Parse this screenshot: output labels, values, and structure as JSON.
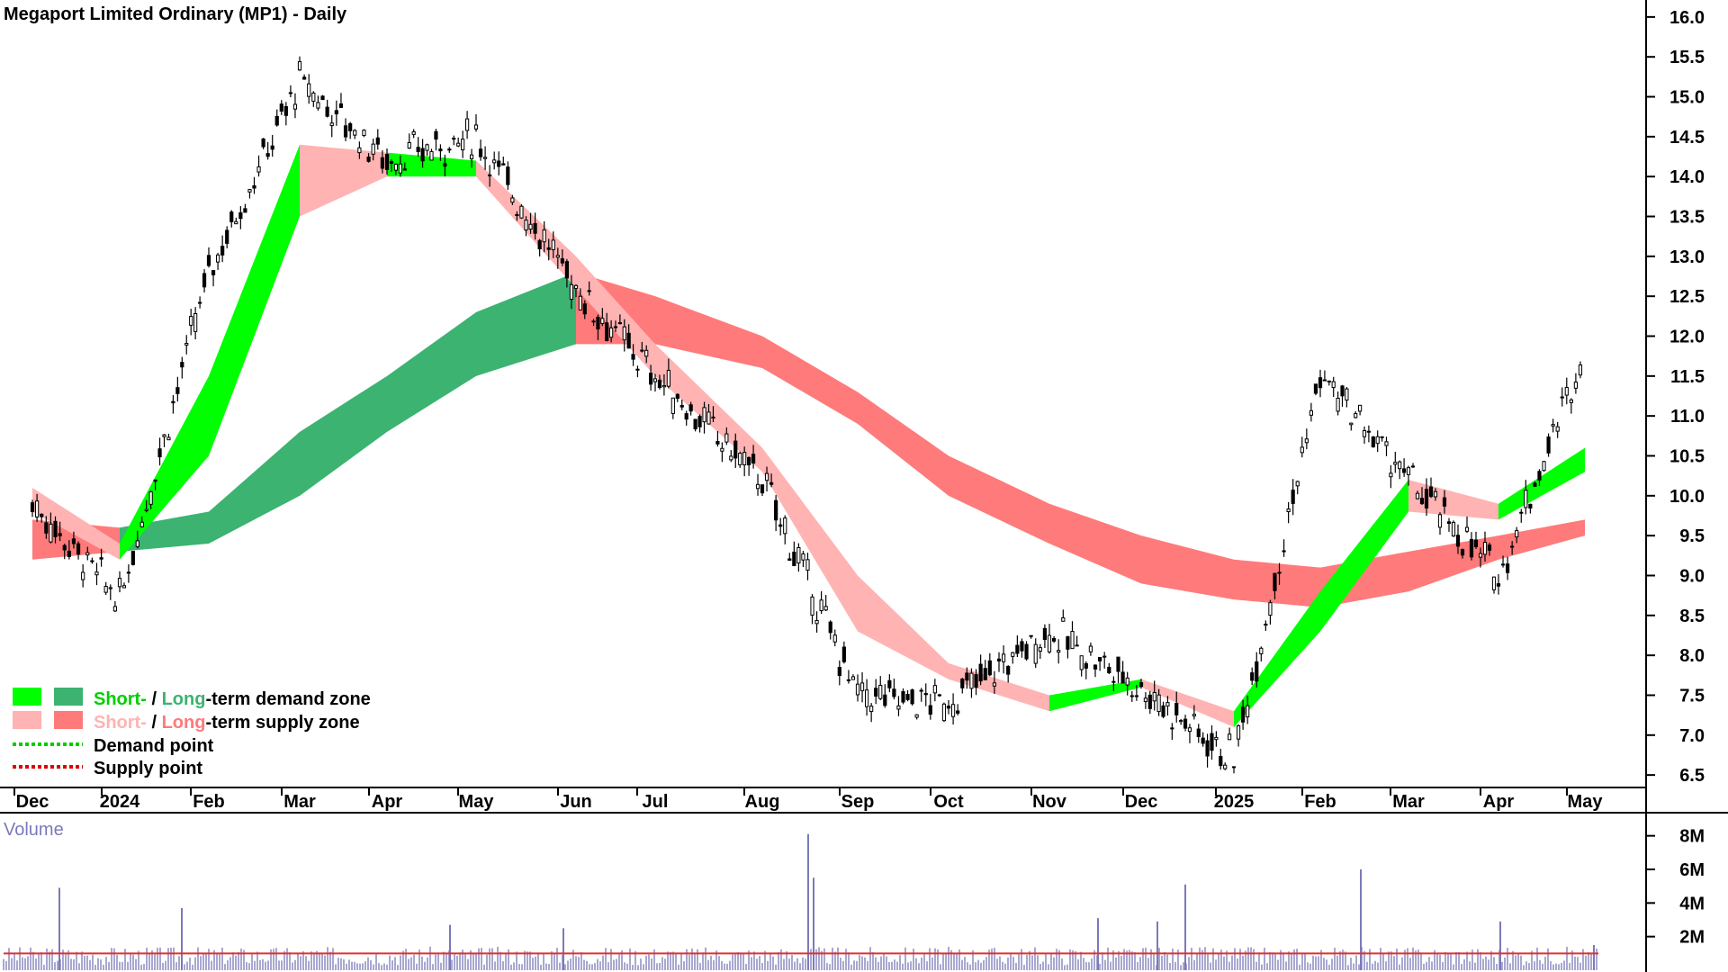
{
  "title": "Megaport Limited Ordinary (MP1) - Daily",
  "colors": {
    "short_demand": "#00ff00",
    "long_demand": "#3cb371",
    "short_supply": "#ffb3b3",
    "long_supply": "#ff7a7a",
    "overlap_supply": "#ff6a2a",
    "volume_bar": "#7a7ab8",
    "volume_ma": "#e03030",
    "candle": "#000000"
  },
  "legend": {
    "row1_short": "Short-",
    "row1_sep": " / ",
    "row1_long": "Long",
    "row1_rest": "-term demand zone",
    "row2_short": "Short-",
    "row2_sep": " / ",
    "row2_long": "Long",
    "row2_rest": "-term supply zone",
    "row3": "Demand point",
    "row4": "Supply point"
  },
  "volume_label": "Volume",
  "chart_data": [
    {
      "type": "candlestick",
      "title": "Megaport Limited Ordinary (MP1) - Daily",
      "x_ticks": [
        "Dec",
        "2024",
        "Feb",
        "Mar",
        "Apr",
        "May",
        "Jun",
        "Jul",
        "Aug",
        "Sep",
        "Oct",
        "Nov",
        "Dec",
        "2025",
        "Feb",
        "Mar",
        "Apr",
        "May"
      ],
      "y_ticks": [
        "16.0",
        "15.5",
        "15.0",
        "14.5",
        "14.0",
        "13.5",
        "13.0",
        "12.5",
        "12.0",
        "11.5",
        "11.0",
        "10.5",
        "10.0",
        "9.5",
        "9.0",
        "8.5",
        "8.0",
        "7.5",
        "7.0",
        "6.5"
      ],
      "ylim": [
        6.4,
        16.1
      ],
      "price_path": [
        [
          "Dec",
          9.9
        ],
        [
          "2024",
          8.7
        ],
        [
          "Feb",
          12.8
        ],
        [
          "Mar",
          15.2
        ],
        [
          "Apr",
          14.2
        ],
        [
          "May",
          14.5
        ],
        [
          "Jun",
          12.6
        ],
        [
          "Jul",
          11.5
        ],
        [
          "Aug",
          10.2
        ],
        [
          "Sep",
          7.5
        ],
        [
          "Oct",
          7.4
        ],
        [
          "Nov",
          8.3
        ],
        [
          "Dec",
          7.6
        ],
        [
          "2025",
          6.7
        ],
        [
          "Feb",
          11.5
        ],
        [
          "Mar",
          10.2
        ],
        [
          "Apr",
          9.0
        ],
        [
          "May",
          11.8
        ]
      ],
      "short_term_zone": [
        [
          "Dec",
          10.1,
          9.8,
          "supply"
        ],
        [
          "2024",
          9.4,
          9.2,
          "supply"
        ],
        [
          "Feb",
          11.5,
          10.5,
          "demand"
        ],
        [
          "Mar",
          14.4,
          13.5,
          "demand"
        ],
        [
          "Apr",
          14.3,
          14.0,
          "supply"
        ],
        [
          "May",
          14.2,
          14.0,
          "demand"
        ],
        [
          "Jun",
          13.0,
          12.6,
          "supply"
        ],
        [
          "Jul",
          11.9,
          11.5,
          "supply"
        ],
        [
          "Aug",
          10.6,
          10.3,
          "supply"
        ],
        [
          "Sep",
          9.0,
          8.3,
          "supply"
        ],
        [
          "Oct",
          7.9,
          7.7,
          "supply"
        ],
        [
          "Nov",
          7.5,
          7.3,
          "supply"
        ],
        [
          "Dec",
          7.7,
          7.6,
          "demand"
        ],
        [
          "2025",
          7.3,
          7.1,
          "supply"
        ],
        [
          "Feb",
          8.8,
          8.3,
          "demand"
        ],
        [
          "Mar",
          10.2,
          9.8,
          "demand"
        ],
        [
          "Apr",
          9.9,
          9.7,
          "supply"
        ],
        [
          "May",
          10.6,
          10.3,
          "demand"
        ]
      ],
      "long_term_zone": [
        [
          "Dec",
          9.7,
          9.2,
          "demand"
        ],
        [
          "2024",
          9.6,
          9.3,
          "supply"
        ],
        [
          "Feb",
          9.8,
          9.4,
          "demand"
        ],
        [
          "Mar",
          10.8,
          10.0,
          "demand"
        ],
        [
          "Apr",
          11.5,
          10.8,
          "demand"
        ],
        [
          "May",
          12.3,
          11.5,
          "demand"
        ],
        [
          "Jun",
          12.8,
          11.9,
          "demand"
        ],
        [
          "Jul",
          12.5,
          11.9,
          "supply"
        ],
        [
          "Aug",
          12.0,
          11.6,
          "supply"
        ],
        [
          "Sep",
          11.3,
          10.9,
          "supply"
        ],
        [
          "Oct",
          10.5,
          10.0,
          "supply"
        ],
        [
          "Nov",
          9.9,
          9.4,
          "supply"
        ],
        [
          "Dec",
          9.5,
          8.9,
          "supply"
        ],
        [
          "2025",
          9.2,
          8.7,
          "supply"
        ],
        [
          "Feb",
          9.1,
          8.6,
          "supply"
        ],
        [
          "Mar",
          9.3,
          8.8,
          "supply"
        ],
        [
          "Apr",
          9.5,
          9.2,
          "supply"
        ],
        [
          "May",
          9.7,
          9.5,
          "supply"
        ]
      ]
    },
    {
      "type": "bar",
      "title": "Volume",
      "y_ticks": [
        "8M",
        "6M",
        "4M",
        "2M"
      ],
      "ylim": [
        0,
        9
      ],
      "peaks_millions": [
        [
          "Dec",
          4.9
        ],
        [
          "Feb",
          3.7
        ],
        [
          "May",
          2.7
        ],
        [
          "Jun",
          2.5
        ],
        [
          "Aug",
          8.1
        ],
        [
          "Aug",
          5.5
        ],
        [
          "Nov",
          3.1
        ],
        [
          "Dec",
          2.9
        ],
        [
          "Dec",
          5.1
        ],
        [
          "Feb",
          6.0
        ],
        [
          "Apr",
          2.9
        ],
        [
          "May",
          1.5
        ]
      ],
      "moving_average_millions": 1.0
    }
  ]
}
